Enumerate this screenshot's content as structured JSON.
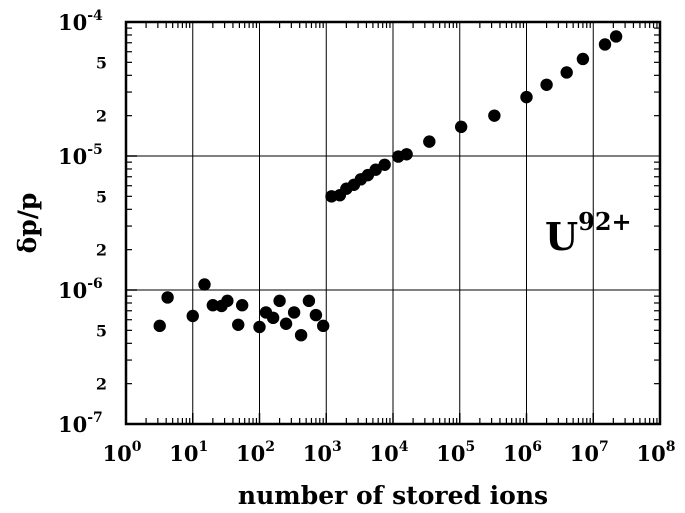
{
  "chart_data": {
    "type": "scatter",
    "xlabel": "number of stored ions",
    "ylabel": "δp/p",
    "x_scale": "log",
    "y_scale": "log",
    "xlim": [
      1,
      100000000
    ],
    "ylim": [
      1e-07,
      0.0001
    ],
    "grid": true,
    "x_ticks": [
      {
        "base": "10",
        "exp": "0"
      },
      {
        "base": "10",
        "exp": "1"
      },
      {
        "base": "10",
        "exp": "2"
      },
      {
        "base": "10",
        "exp": "3"
      },
      {
        "base": "10",
        "exp": "4"
      },
      {
        "base": "10",
        "exp": "5"
      },
      {
        "base": "10",
        "exp": "6"
      },
      {
        "base": "10",
        "exp": "7"
      },
      {
        "base": "10",
        "exp": "8"
      }
    ],
    "y_ticks": [
      {
        "base": "10",
        "exp": "-7"
      },
      {
        "base": "10",
        "exp": "-6"
      },
      {
        "base": "10",
        "exp": "-5"
      },
      {
        "base": "10",
        "exp": "-4"
      }
    ],
    "y_minor_labels": [
      "2",
      "5",
      "2",
      "5",
      "2",
      "5"
    ],
    "annotation": {
      "base": "U",
      "sup": "92+"
    },
    "series": [
      {
        "points": [
          {
            "x": 3.2,
            "y": 5.4e-07
          },
          {
            "x": 4.2,
            "y": 8.8e-07
          },
          {
            "x": 10,
            "y": 6.4e-07
          },
          {
            "x": 15,
            "y": 1.1e-06
          },
          {
            "x": 20,
            "y": 7.7e-07
          },
          {
            "x": 27,
            "y": 7.6e-07
          },
          {
            "x": 33,
            "y": 8.3e-07
          },
          {
            "x": 48,
            "y": 5.5e-07
          },
          {
            "x": 55,
            "y": 7.7e-07
          },
          {
            "x": 100,
            "y": 5.3e-07
          },
          {
            "x": 125,
            "y": 6.8e-07
          },
          {
            "x": 160,
            "y": 6.2e-07
          },
          {
            "x": 200,
            "y": 8.3e-07
          },
          {
            "x": 250,
            "y": 5.6e-07
          },
          {
            "x": 330,
            "y": 6.8e-07
          },
          {
            "x": 420,
            "y": 4.6e-07
          },
          {
            "x": 550,
            "y": 8.3e-07
          },
          {
            "x": 700,
            "y": 6.5e-07
          },
          {
            "x": 900,
            "y": 5.4e-07
          },
          {
            "x": 1200,
            "y": 5e-06
          },
          {
            "x": 1600,
            "y": 5.1e-06
          },
          {
            "x": 2000,
            "y": 5.7e-06
          },
          {
            "x": 2600,
            "y": 6.1e-06
          },
          {
            "x": 3300,
            "y": 6.7e-06
          },
          {
            "x": 4200,
            "y": 7.2e-06
          },
          {
            "x": 5500,
            "y": 7.9e-06
          },
          {
            "x": 7500,
            "y": 8.6e-06
          },
          {
            "x": 12000,
            "y": 9.9e-06
          },
          {
            "x": 16000,
            "y": 1.03e-05
          },
          {
            "x": 35000,
            "y": 1.28e-05
          },
          {
            "x": 105000,
            "y": 1.65e-05
          },
          {
            "x": 330000,
            "y": 2e-05
          },
          {
            "x": 1000000,
            "y": 2.75e-05
          },
          {
            "x": 2000000,
            "y": 3.4e-05
          },
          {
            "x": 4000000,
            "y": 4.2e-05
          },
          {
            "x": 7000000,
            "y": 5.3e-05
          },
          {
            "x": 15000000,
            "y": 6.8e-05
          },
          {
            "x": 22000000,
            "y": 7.8e-05
          }
        ]
      }
    ]
  }
}
